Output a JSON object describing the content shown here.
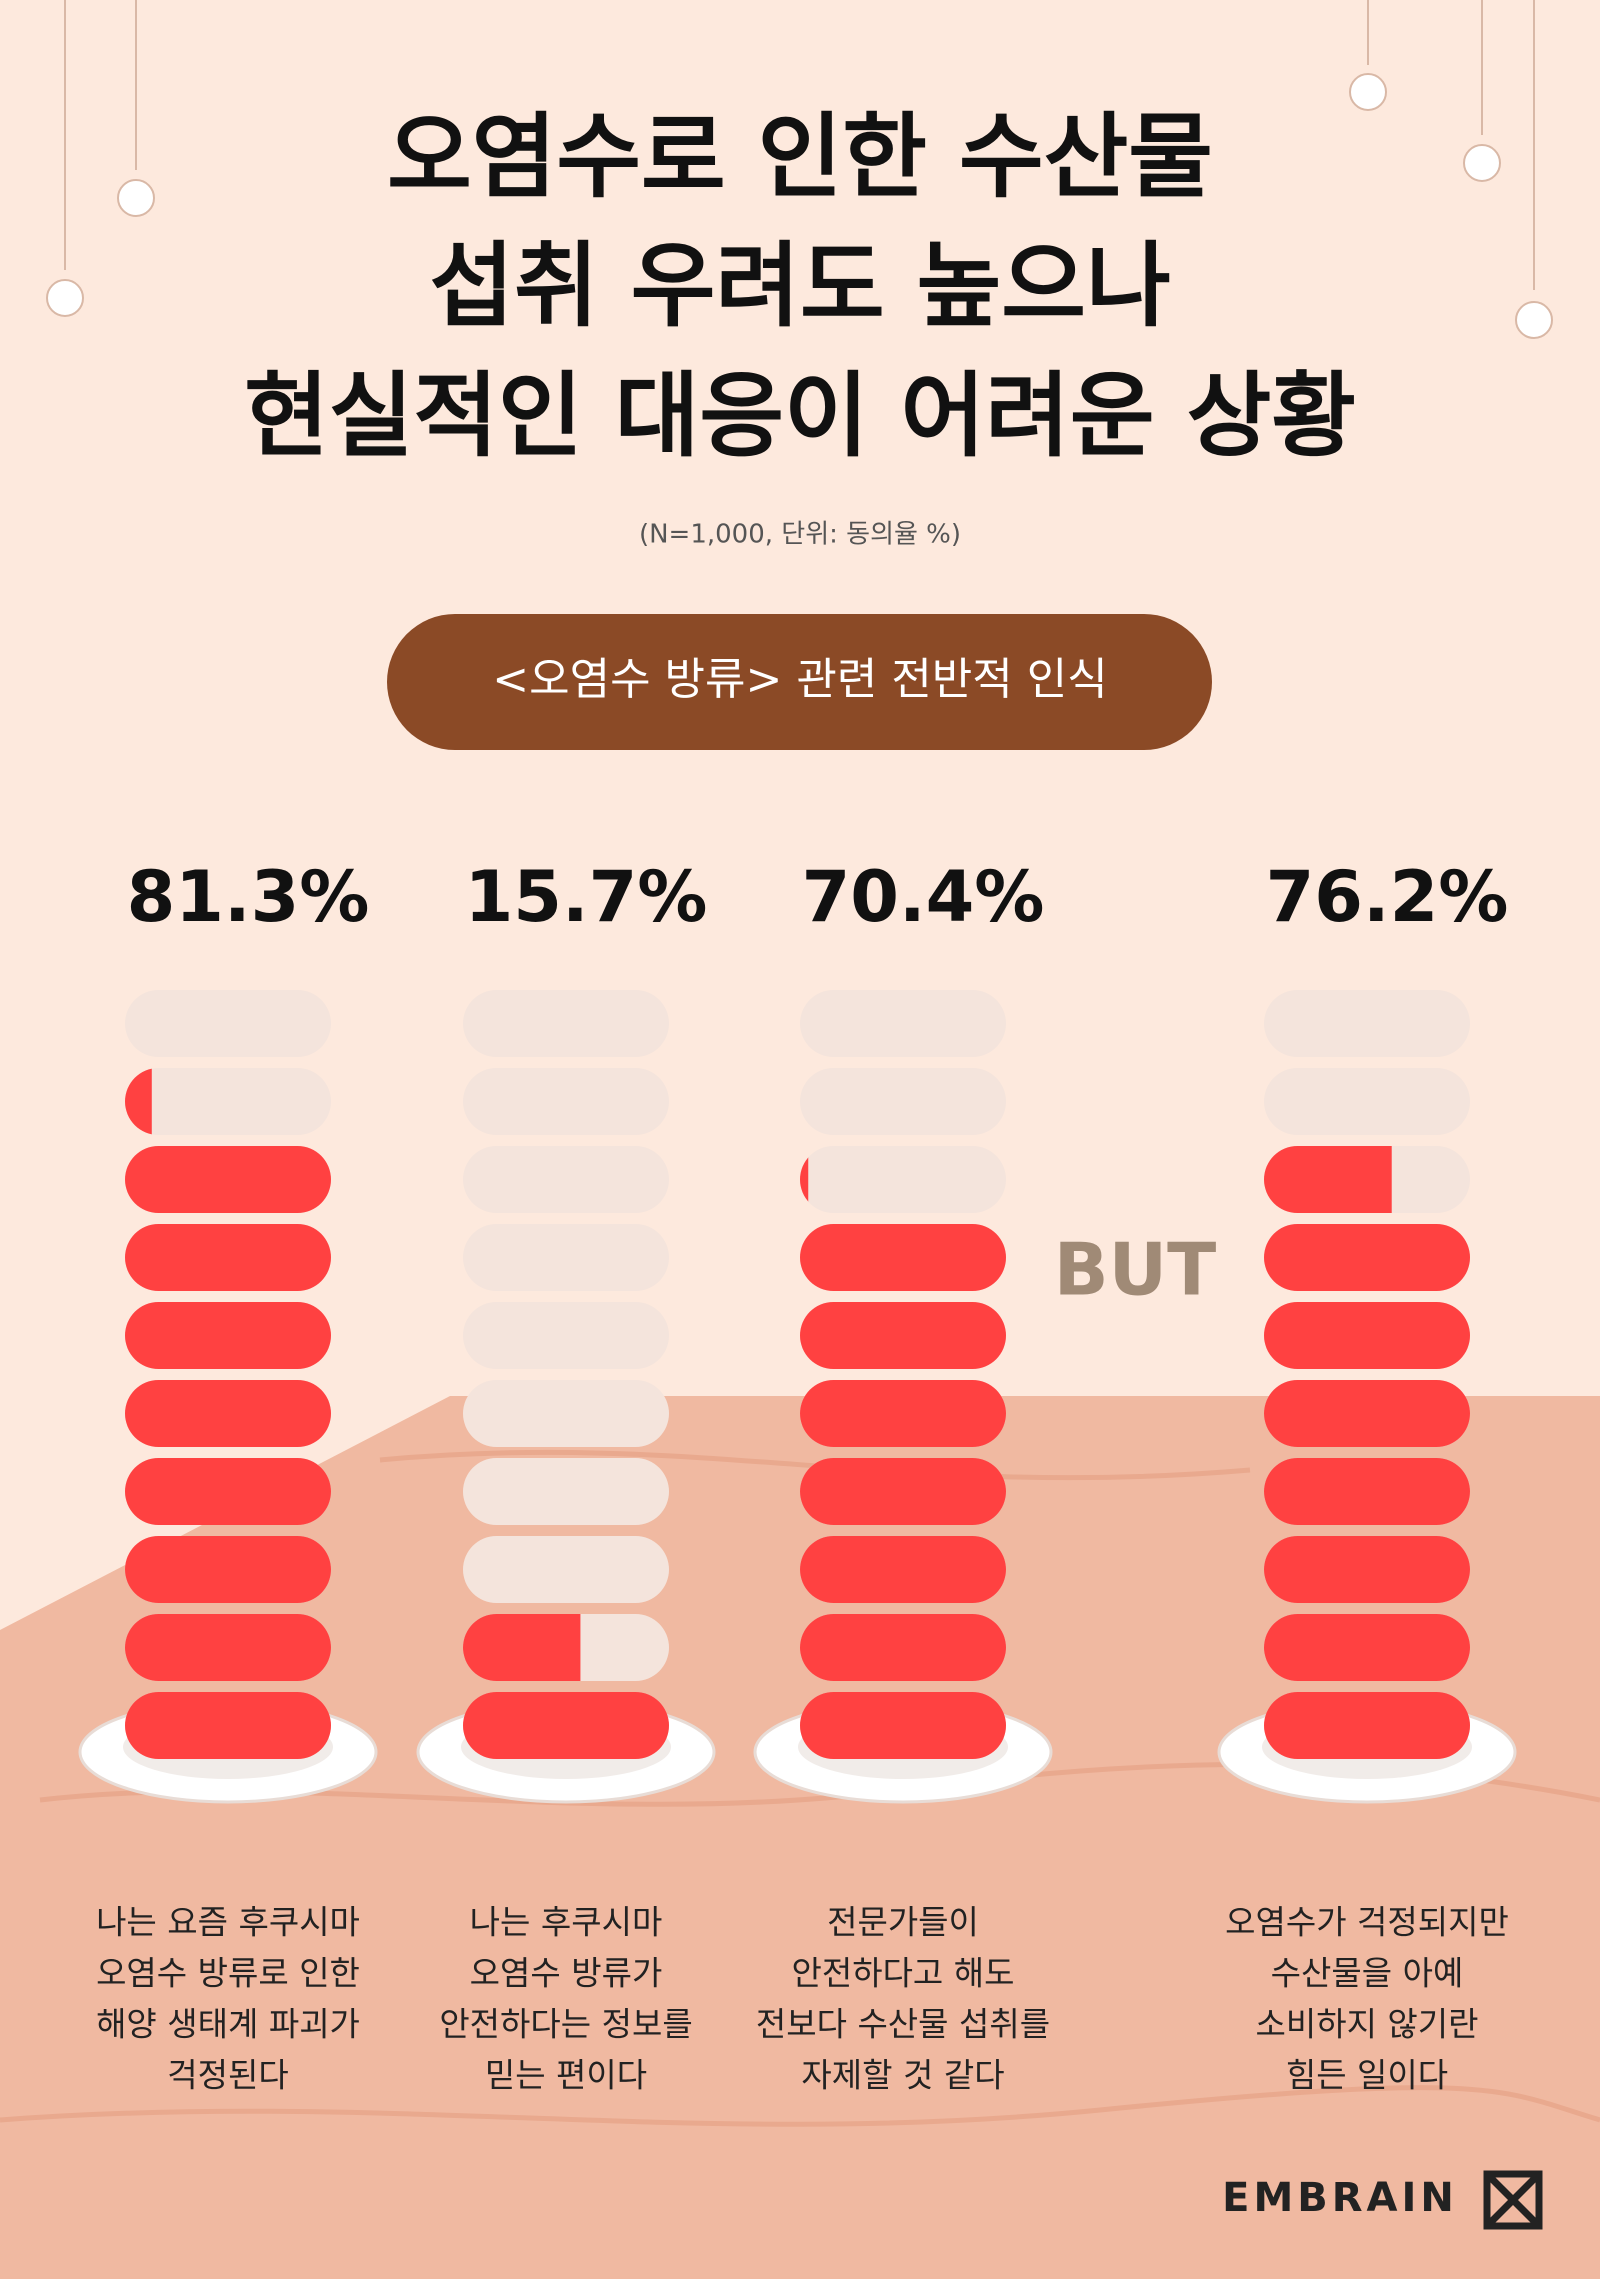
{
  "chart_data": {
    "type": "pill-stack",
    "title": [
      "오염수로 인한 수산물",
      "섭취 우려도 높으나",
      "현실적인 대응이 어려운 상황"
    ],
    "subtitle": "(N=1,000, 단위: 동의율 %)",
    "section_title": "<오염수 방류> 관련 전반적 인식",
    "annotation": "BUT",
    "brand": "EMBRAIN",
    "categories": [
      [
        "나는 요즘 후쿠시마",
        "오염수 방류로 인한",
        "해양 생태계 파괴가",
        "걱정된다"
      ],
      [
        "나는 후쿠시마",
        "오염수 방류가",
        "안전하다는 정보를",
        "믿는 편이다"
      ],
      [
        "전문가들이",
        "안전하다고 해도",
        "전보다 수산물 섭취를",
        "자제할 것 같다"
      ],
      [
        "오염수가 걱정되지만",
        "수산물을 아예",
        "소비하지 않기란",
        "힘든 일이다"
      ]
    ],
    "values": [
      81.3,
      15.7,
      70.4,
      76.2
    ],
    "value_labels": [
      "81.3%",
      "15.7%",
      "70.4%",
      "76.2%"
    ],
    "ylim": [
      0,
      100
    ],
    "color": "#ff4141",
    "empty_color": "#f4e4dc"
  }
}
